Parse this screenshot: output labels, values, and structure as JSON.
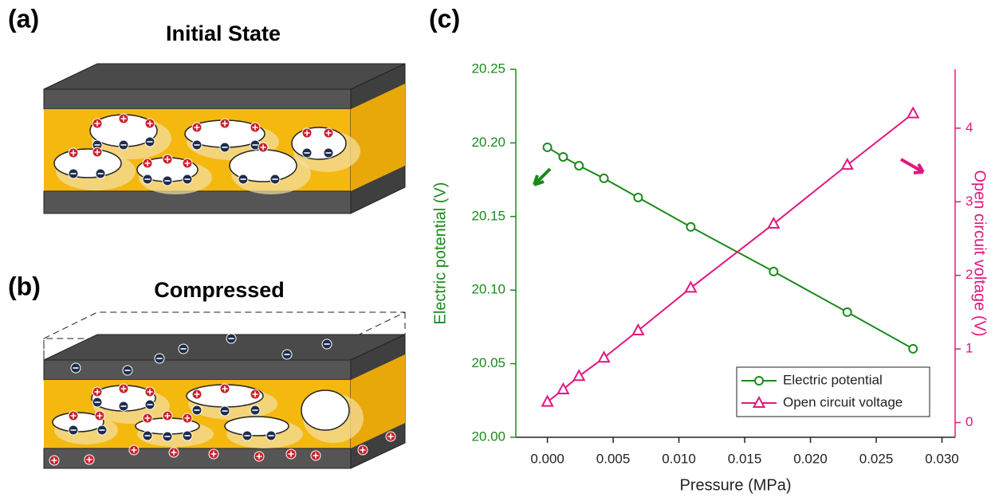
{
  "panel_labels": [
    "(a)",
    "(b)",
    "(c)"
  ],
  "panel_titles": [
    "Initial State",
    "Compressed"
  ],
  "chart_data": {
    "type": "line",
    "x_label": "Pressure (MPa)",
    "y_label": "Electric potential (V)",
    "y2_label": "Open circuit voltage (V)",
    "x": [
      0.0,
      0.0012,
      0.0024,
      0.0043,
      0.0069,
      0.0109,
      0.0172,
      0.0228,
      0.0278
    ],
    "series": [
      {
        "name": "Electric potential",
        "color": "#1b8a1b",
        "marker": "circle",
        "values": [
          20.197,
          20.1905,
          20.1845,
          20.1759,
          20.1629,
          20.1429,
          20.1126,
          20.085,
          20.0601
        ]
      },
      {
        "name": "Open circuit voltage",
        "color": "#e3167f",
        "marker": "triangle",
        "axis": "y2",
        "values": [
          0.28,
          0.45,
          0.63,
          0.88,
          1.25,
          1.83,
          2.7,
          3.5,
          4.2
        ]
      }
    ],
    "xlim": [
      -0.0024,
      0.031
    ],
    "xticks": [
      {
        "value": 0,
        "label": "0.000"
      },
      {
        "value": 0.005,
        "label": "0.005"
      },
      {
        "value": 0.01,
        "label": "0.010"
      },
      {
        "value": 0.015,
        "label": "0.015"
      },
      {
        "value": 0.02,
        "label": "0.020"
      },
      {
        "value": 0.025,
        "label": "0.025"
      },
      {
        "value": 0.03,
        "label": "0.030"
      }
    ],
    "ylim": [
      20.0,
      20.25
    ],
    "yticks": [
      {
        "value": 20.0,
        "label": "20.00"
      },
      {
        "value": 20.05,
        "label": "20.05"
      },
      {
        "value": 20.1,
        "label": "20.10"
      },
      {
        "value": 20.15,
        "label": "20.15"
      },
      {
        "value": 20.2,
        "label": "20.20"
      },
      {
        "value": 20.25,
        "label": "20.25"
      }
    ],
    "y2lim": [
      -0.2,
      4.8
    ],
    "y2ticks": [
      0,
      1,
      2,
      3,
      4
    ],
    "legend": "lower right",
    "grid": false
  }
}
